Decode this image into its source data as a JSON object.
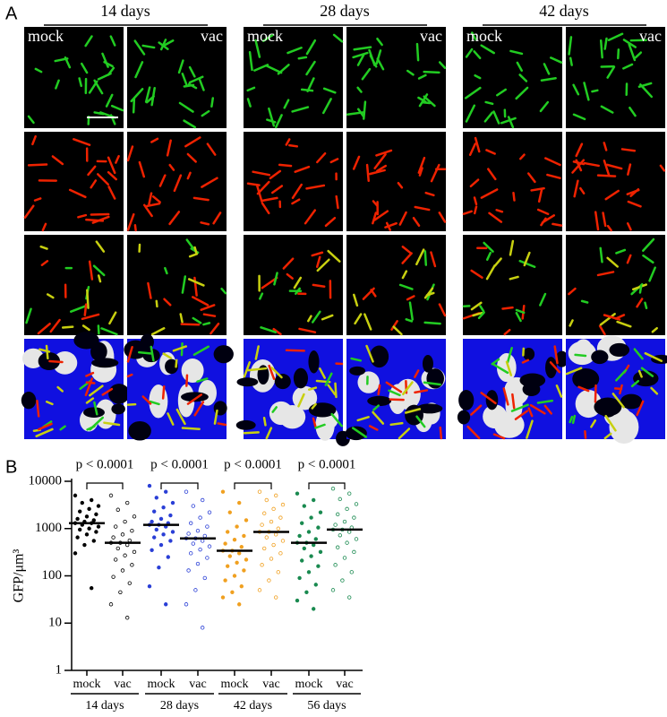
{
  "panel_a": {
    "label": "A",
    "columns": [
      {
        "title": "14 days",
        "left": "mock",
        "right": "vac"
      },
      {
        "title": "28 days",
        "left": "mock",
        "right": "vac"
      },
      {
        "title": "42 days",
        "left": "mock",
        "right": "vac"
      }
    ]
  },
  "chart_data": {
    "type": "strip",
    "panel_label": "B",
    "ylabel": "GFP/μm³",
    "log": true,
    "ylim": [
      1,
      10000
    ],
    "yticks": [
      1,
      10,
      100,
      1000,
      10000
    ],
    "categories": [
      "mock",
      "vac",
      "mock",
      "vac",
      "mock",
      "vac",
      "mock",
      "vac"
    ],
    "group_labels": [
      "14 days",
      "28 days",
      "42 days",
      "56 days"
    ],
    "annotations": [
      "p < 0.0001",
      "p < 0.0001",
      "p < 0.0001",
      "p < 0.0001"
    ],
    "series": [
      {
        "color": "#000000",
        "filled": true,
        "median": 1300,
        "values": [
          5000,
          4000,
          3500,
          3000,
          2600,
          2300,
          2000,
          1800,
          1600,
          1500,
          1400,
          1300,
          1300,
          1200,
          1100,
          1000,
          950,
          850,
          750,
          650,
          550,
          450,
          300,
          55
        ]
      },
      {
        "color": "#000000",
        "filled": false,
        "median": 500,
        "values": [
          5000,
          3500,
          2500,
          1800,
          1400,
          1100,
          900,
          750,
          650,
          560,
          500,
          500,
          450,
          380,
          320,
          270,
          220,
          170,
          130,
          95,
          70,
          45,
          25,
          13
        ]
      },
      {
        "color": "#2a3fd6",
        "filled": true,
        "median": 1200,
        "values": [
          8000,
          6000,
          4500,
          3500,
          2800,
          2300,
          1900,
          1600,
          1400,
          1300,
          1200,
          1200,
          1100,
          950,
          850,
          750,
          650,
          550,
          450,
          350,
          250,
          150,
          60,
          25
        ]
      },
      {
        "color": "#2a3fd6",
        "filled": false,
        "median": 620,
        "values": [
          6000,
          4000,
          3000,
          2200,
          1700,
          1300,
          1100,
          900,
          780,
          700,
          620,
          620,
          550,
          480,
          420,
          360,
          300,
          240,
          180,
          130,
          90,
          50,
          25,
          8
        ]
      },
      {
        "color": "#f0a020",
        "filled": true,
        "median": 340,
        "values": [
          6000,
          3500,
          2200,
          1500,
          1100,
          850,
          700,
          580,
          480,
          410,
          340,
          340,
          300,
          260,
          220,
          190,
          160,
          130,
          100,
          80,
          60,
          45,
          35,
          25
        ]
      },
      {
        "color": "#f0a020",
        "filled": false,
        "median": 850,
        "values": [
          6000,
          5000,
          4000,
          3200,
          2600,
          2100,
          1700,
          1400,
          1200,
          1000,
          850,
          850,
          750,
          650,
          550,
          450,
          380,
          300,
          230,
          170,
          120,
          80,
          50,
          35
        ]
      },
      {
        "color": "#1a8a50",
        "filled": true,
        "median": 500,
        "values": [
          5500,
          4000,
          3000,
          2200,
          1700,
          1300,
          1050,
          850,
          700,
          600,
          500,
          500,
          450,
          380,
          320,
          260,
          210,
          160,
          120,
          90,
          65,
          45,
          30,
          20
        ]
      },
      {
        "color": "#1a8a50",
        "filled": false,
        "median": 950,
        "values": [
          7000,
          5500,
          4200,
          3300,
          2600,
          2000,
          1700,
          1400,
          1200,
          1050,
          950,
          950,
          850,
          720,
          600,
          500,
          400,
          320,
          240,
          170,
          120,
          80,
          50,
          35
        ]
      }
    ]
  }
}
